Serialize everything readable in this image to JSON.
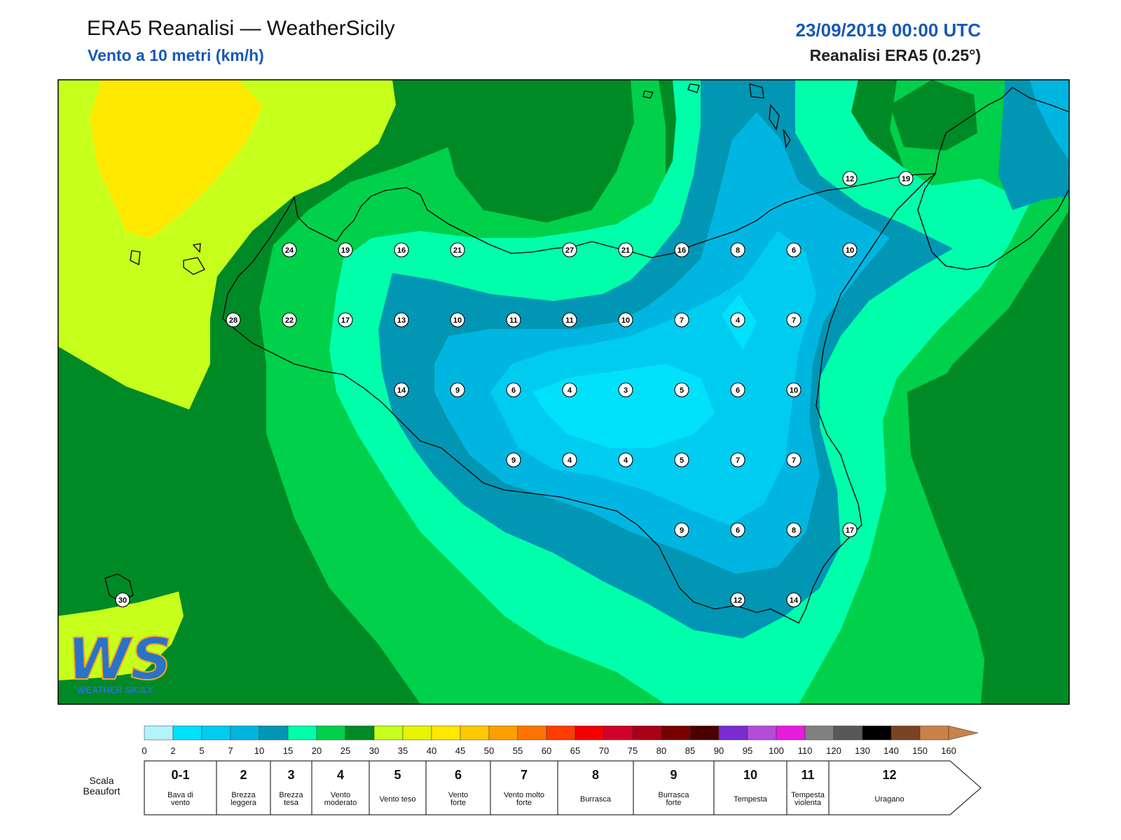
{
  "header": {
    "title": "ERA5 Reanalisi — WeatherSicily",
    "subtitle": "Vento a 10 metri (km/h)",
    "datetime": "23/09/2019 00:00 UTC",
    "source": "Reanalisi ERA5 (0.25°)"
  },
  "map": {
    "stations": [
      "24",
      "19",
      "16",
      "21",
      "27",
      "21",
      "16",
      "8",
      "6",
      "10",
      "12",
      "19",
      "28",
      "22",
      "17",
      "13",
      "10",
      "11",
      "11",
      "10",
      "7",
      "4",
      "7",
      "14",
      "9",
      "6",
      "4",
      "3",
      "5",
      "6",
      "10",
      "9",
      "4",
      "4",
      "5",
      "7",
      "7",
      "9",
      "6",
      "8",
      "17",
      "12",
      "14",
      "30"
    ]
  },
  "colorbar": {
    "ticks": [
      "0",
      "2",
      "5",
      "7",
      "10",
      "15",
      "20",
      "25",
      "30",
      "35",
      "40",
      "45",
      "50",
      "55",
      "60",
      "65",
      "70",
      "75",
      "80",
      "85",
      "90",
      "95",
      "100",
      "110",
      "120",
      "130",
      "140",
      "150",
      "160"
    ],
    "colors": [
      "#b3f3fc",
      "#00e2fb",
      "#00ccf0",
      "#00b6e0",
      "#0096b4",
      "#00ffaa",
      "#00d04a",
      "#008a26",
      "#c6ff1c",
      "#e6f500",
      "#ffe800",
      "#ffc800",
      "#ffa000",
      "#ff7400",
      "#ff3c00",
      "#f20000",
      "#d2002a",
      "#a80018",
      "#780000",
      "#4a0000",
      "#7a2cd0",
      "#b44cd8",
      "#e61cde",
      "#808080",
      "#585858",
      "#000000",
      "#7a4422",
      "#c8824a"
    ]
  },
  "beaufort": {
    "label": "Scala Beaufort",
    "classes": [
      {
        "num": "0-1",
        "desc": "Bava di vento"
      },
      {
        "num": "2",
        "desc": "Brezza leggera"
      },
      {
        "num": "3",
        "desc": "Brezza tesa"
      },
      {
        "num": "4",
        "desc": "Vento moderato"
      },
      {
        "num": "5",
        "desc": "Vento teso"
      },
      {
        "num": "6",
        "desc": "Vento forte"
      },
      {
        "num": "7",
        "desc": "Vento molto forte"
      },
      {
        "num": "8",
        "desc": "Burrasca"
      },
      {
        "num": "9",
        "desc": "Burrasca forte"
      },
      {
        "num": "10",
        "desc": "Tempesta"
      },
      {
        "num": "11",
        "desc": "Tempesta violenta"
      },
      {
        "num": "12",
        "desc": "Uragano"
      }
    ]
  },
  "logo": {
    "letters": "WS",
    "text": "WEATHER SICILY"
  }
}
